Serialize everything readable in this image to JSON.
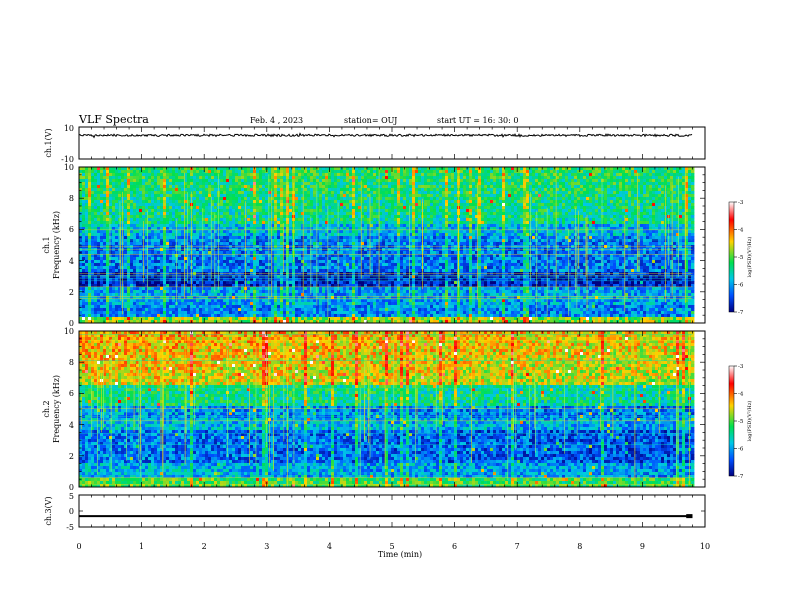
{
  "header": {
    "title": "VLF Spectra",
    "date": "Feb. 4 , 2023",
    "station": "station= OUJ",
    "start": "start  UT =   16: 30: 0"
  },
  "colorbar": {
    "label": "log(PSD)(V²/Hz)",
    "ticks": [
      "-3",
      "-4",
      "-5",
      "-6",
      "-7"
    ],
    "colors": [
      "#ffffff",
      "#ff0000",
      "#ffd200",
      "#00e050",
      "#00c8e6",
      "#0050ff",
      "#000080"
    ]
  },
  "chart_data": [
    {
      "type": "line",
      "panel": "ch1-waveform",
      "ylabel": "ch.1(V)",
      "ylim": [
        -10,
        10
      ],
      "yticks": [
        "10",
        "-10"
      ],
      "x": [
        0,
        9.8
      ],
      "values": [
        4.8,
        4.8
      ],
      "color": "#000000"
    },
    {
      "type": "heatmap",
      "panel": "ch1-spectrogram",
      "ylabel_1": "ch.1",
      "ylabel_2": "Frequency (kHz)",
      "ylim": [
        0,
        10
      ],
      "yticks": [
        "10",
        "8",
        "6",
        "4",
        "2",
        "0"
      ],
      "x_range": [
        0,
        9.8
      ],
      "colorscale_range": [
        -7,
        -3
      ]
    },
    {
      "type": "heatmap",
      "panel": "ch2-spectrogram",
      "ylabel_1": "ch.2",
      "ylabel_2": "Frequency (kHz)",
      "ylim": [
        0,
        10
      ],
      "yticks": [
        "10",
        "8",
        "6",
        "4",
        "2",
        "0"
      ],
      "x_range": [
        0,
        9.8
      ],
      "colorscale_range": [
        -7,
        -3
      ]
    },
    {
      "type": "line",
      "panel": "ch3-waveform",
      "ylabel": "ch.3(V)",
      "ylim": [
        -5,
        5
      ],
      "yticks": [
        "5",
        "0",
        "-5"
      ],
      "x": [
        0,
        9.7,
        9.8
      ],
      "values": [
        -1.6,
        -1.6,
        -1.6
      ],
      "color": "#000000"
    }
  ],
  "xaxis": {
    "label": "Time (min)",
    "ticks": [
      "0",
      "1",
      "2",
      "3",
      "4",
      "5",
      "6",
      "7",
      "8",
      "9",
      "10"
    ],
    "range": [
      0,
      10
    ]
  }
}
